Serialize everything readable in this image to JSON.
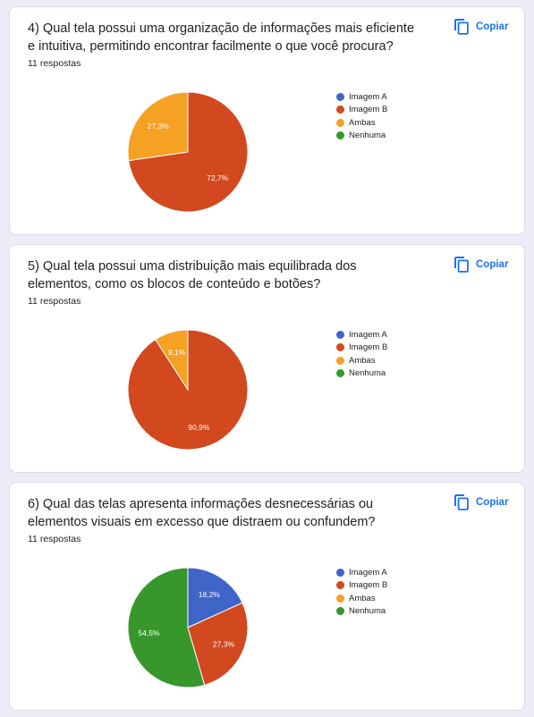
{
  "copy_label": "Copiar",
  "icons": {
    "copy": "copy-icon"
  },
  "colors": {
    "Imagem A": "#3f65c8",
    "Imagem B": "#d2481f",
    "Ambas": "#f4a124",
    "Nenhuma": "#37962c"
  },
  "questions": [
    {
      "title": "4) Qual tela possui uma organização de informações mais eficiente e intuitiva, permitindo encontrar facilmente o que você procura?",
      "responses": "11 respostas",
      "legend": [
        "Imagem A",
        "Imagem B",
        "Ambas",
        "Nenhuma"
      ]
    },
    {
      "title": "5) Qual tela possui uma distribuição mais equilibrada dos elementos, como os blocos de conteúdo e botões?",
      "responses": "11 respostas",
      "legend": [
        "Imagem A",
        "Imagem B",
        "Ambas",
        "Nenhuma"
      ]
    },
    {
      "title": "6) Qual das telas apresenta informações desnecessárias ou elementos visuais em excesso que distraem ou confundem?",
      "responses": "11 respostas",
      "legend": [
        "Imagem A",
        "Imagem B",
        "Ambas",
        "Nenhuma"
      ]
    }
  ],
  "chart_data": [
    {
      "type": "pie",
      "categories": [
        "Imagem A",
        "Imagem B",
        "Ambas",
        "Nenhuma"
      ],
      "values": [
        0,
        72.7,
        27.3,
        0
      ],
      "labels": [
        "",
        "72,7%",
        "27,3%",
        ""
      ],
      "legend_position": "right"
    },
    {
      "type": "pie",
      "categories": [
        "Imagem A",
        "Imagem B",
        "Ambas",
        "Nenhuma"
      ],
      "values": [
        0,
        90.9,
        9.1,
        0
      ],
      "labels": [
        "",
        "90,9%",
        "9,1%",
        ""
      ],
      "legend_position": "right"
    },
    {
      "type": "pie",
      "categories": [
        "Imagem A",
        "Imagem B",
        "Ambas",
        "Nenhuma"
      ],
      "values": [
        18.2,
        27.3,
        0,
        54.5
      ],
      "labels": [
        "18,2%",
        "27,3%",
        "",
        "54,5%"
      ],
      "legend_position": "right"
    }
  ]
}
